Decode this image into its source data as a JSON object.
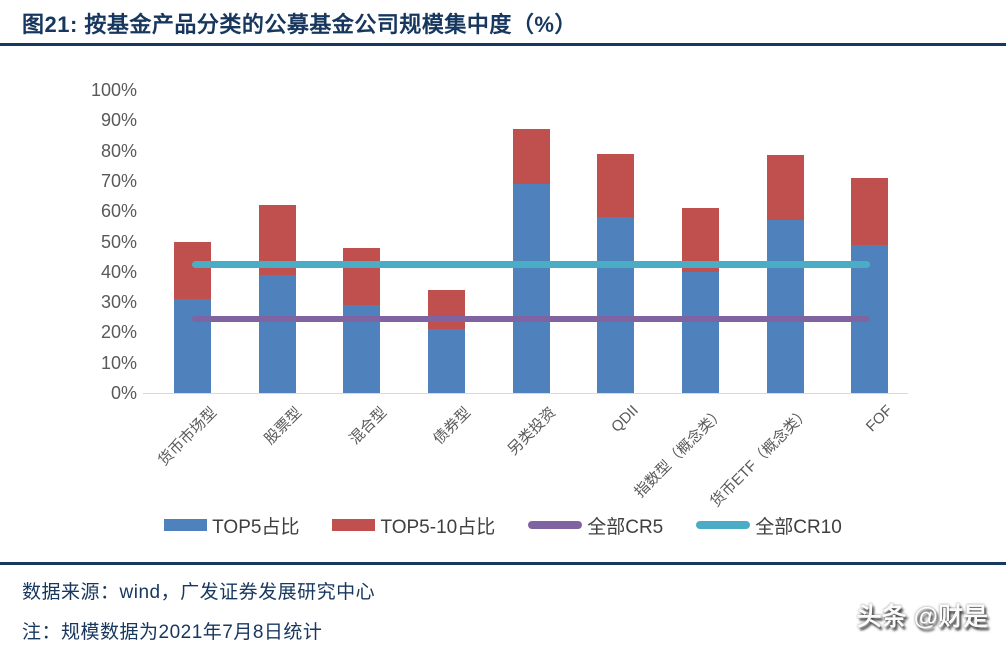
{
  "figure": {
    "title": "图21:  按基金产品分类的公募基金公司规模集中度（%）"
  },
  "chart_data": {
    "type": "bar",
    "stacked": true,
    "title": "按基金产品分类的公募基金公司规模集中度（%）",
    "categories": [
      "货币市场型",
      "股票型",
      "混合型",
      "债券型",
      "另类投资",
      "QDII",
      "指数型（概念类）",
      "货币ETF（概念类）",
      "FOF"
    ],
    "series": [
      {
        "key": "top5",
        "name": "TOP5占比",
        "type": "bar",
        "color": "#4F81BD",
        "values": [
          31,
          39,
          29,
          21,
          69,
          58,
          40,
          57,
          49
        ]
      },
      {
        "key": "top5_10",
        "name": "TOP5-10占比",
        "type": "bar",
        "color": "#C0504D",
        "values": [
          19,
          23,
          19,
          13,
          18,
          21,
          21,
          21.5,
          22
        ]
      },
      {
        "key": "cr5",
        "name": "全部CR5",
        "type": "line",
        "color": "#8064A2",
        "value": 24.5
      },
      {
        "key": "cr10",
        "name": "全部CR10",
        "type": "line",
        "color": "#4BACC6",
        "value": 42.5
      }
    ],
    "stack_totals": [
      50,
      62,
      48,
      34,
      87,
      79,
      61,
      78.5,
      71
    ],
    "xlabel": "",
    "ylabel": "",
    "ylim": [
      0,
      100
    ],
    "ytick_step": 10,
    "ytick_labels": [
      "0%",
      "10%",
      "20%",
      "30%",
      "40%",
      "50%",
      "60%",
      "70%",
      "80%",
      "90%",
      "100%"
    ],
    "grid": false,
    "legend_position": "bottom"
  },
  "footer": {
    "source": "数据来源：wind，广发证券发展研究中心",
    "note": "注：规模数据为2021年7月8日统计"
  },
  "watermark": "头条 @财是",
  "colors": {
    "title_text": "#17375E",
    "axis_text": "#595959",
    "axis_line": "#D9D9D9",
    "legend_text": "#3f3f3f",
    "rule": "#17375E"
  }
}
